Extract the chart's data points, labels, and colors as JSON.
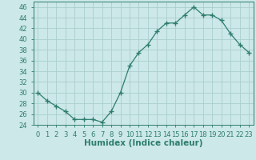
{
  "x": [
    0,
    1,
    2,
    3,
    4,
    5,
    6,
    7,
    8,
    9,
    10,
    11,
    12,
    13,
    14,
    15,
    16,
    17,
    18,
    19,
    20,
    21,
    22,
    23
  ],
  "y": [
    30,
    28.5,
    27.5,
    26.5,
    25,
    25,
    25,
    24.5,
    26.5,
    30,
    35,
    37.5,
    39,
    41.5,
    43,
    43,
    44.5,
    46,
    44.5,
    44.5,
    43.5,
    41,
    39,
    37.5
  ],
  "line_color": "#2e7d6e",
  "marker": "+",
  "marker_size": 4,
  "marker_edge_width": 1.0,
  "line_width": 0.9,
  "bg_color": "#cce8e8",
  "grid_color": "#aacece",
  "xlabel": "Humidex (Indice chaleur)",
  "ylabel": "",
  "ylim": [
    24,
    47
  ],
  "yticks": [
    24,
    26,
    28,
    30,
    32,
    34,
    36,
    38,
    40,
    42,
    44,
    46
  ],
  "xlim": [
    -0.5,
    23.5
  ],
  "xticks": [
    0,
    1,
    2,
    3,
    4,
    5,
    6,
    7,
    8,
    9,
    10,
    11,
    12,
    13,
    14,
    15,
    16,
    17,
    18,
    19,
    20,
    21,
    22,
    23
  ],
  "xtick_labels": [
    "0",
    "1",
    "2",
    "3",
    "4",
    "5",
    "6",
    "7",
    "8",
    "9",
    "10",
    "11",
    "12",
    "13",
    "14",
    "15",
    "16",
    "17",
    "18",
    "19",
    "20",
    "21",
    "22",
    "23"
  ],
  "tick_fontsize": 6,
  "label_fontsize": 7.5
}
